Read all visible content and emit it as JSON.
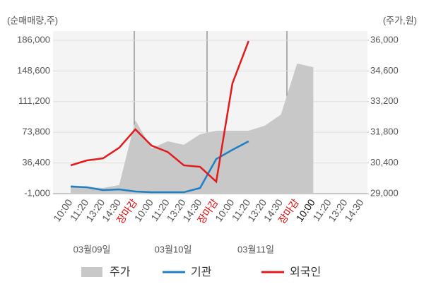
{
  "chart_data": {
    "type": "line",
    "y_axis_label": "(순매매량,주)",
    "y2_axis_label": "(주가,원)",
    "categories": [
      "10:00",
      "11:20",
      "13:20",
      "14:30",
      "장마감",
      "10:00",
      "11:20",
      "13:20",
      "14:30",
      "장마감",
      "10:00",
      "11:20",
      "13:20",
      "14:30",
      "장마감",
      "10:00",
      "11:20",
      "13:20",
      "14:30"
    ],
    "category_colors": [
      "#555",
      "#555",
      "#555",
      "#555",
      "#e00000",
      "#555",
      "#555",
      "#555",
      "#555",
      "#e00000",
      "#555",
      "#555",
      "#555",
      "#555",
      "#e00000",
      "#111",
      "#555",
      "#555",
      "#555"
    ],
    "dates": [
      "03월09일",
      "03월10일",
      "03월11일"
    ],
    "ylim": [
      -1000,
      186000
    ],
    "yticks": [
      {
        "value": -1000,
        "label": "-1,000"
      },
      {
        "value": 36400,
        "label": "36,400"
      },
      {
        "value": 73800,
        "label": "73,800"
      },
      {
        "value": 111200,
        "label": "111,200"
      },
      {
        "value": 148600,
        "label": "148,600"
      },
      {
        "value": 186000,
        "label": "186,000"
      }
    ],
    "y2lim": [
      29000,
      36000
    ],
    "y2ticks": [
      {
        "value": 29000,
        "label": "29,000"
      },
      {
        "value": 30400,
        "label": "30,400"
      },
      {
        "value": 31800,
        "label": "31,800"
      },
      {
        "value": 33200,
        "label": "33,200"
      },
      {
        "value": 34600,
        "label": "34,600"
      },
      {
        "value": 36000,
        "label": "36,000"
      }
    ],
    "grid": true,
    "series": [
      {
        "name": "주가",
        "color": "#c8c8c8",
        "type": "area",
        "axis": "y2",
        "values": [
          29390,
          29290,
          29260,
          29390,
          32350,
          31060,
          31390,
          31230,
          31710,
          31870,
          31870,
          31870,
          32100,
          32610,
          34940,
          34770,
          null,
          null,
          null
        ]
      },
      {
        "name": "기관",
        "color": "#1f7fc4",
        "values": [
          7600,
          6800,
          3300,
          4200,
          1600,
          700,
          700,
          700,
          5900,
          41200,
          52400,
          62800,
          null,
          null,
          null,
          null,
          null,
          null,
          null
        ]
      },
      {
        "name": "외국인",
        "color": "#e31a1c",
        "values": [
          33470,
          39500,
          42100,
          55000,
          77400,
          57600,
          49800,
          33500,
          31700,
          13600,
          133400,
          185100,
          null,
          null,
          null,
          null,
          null,
          null,
          null
        ]
      }
    ]
  }
}
